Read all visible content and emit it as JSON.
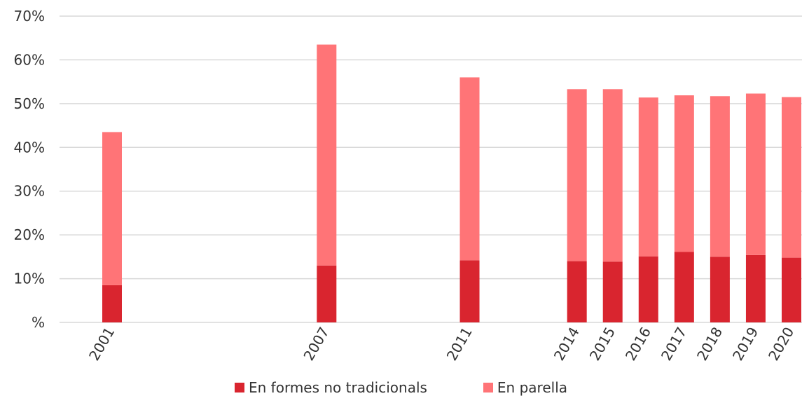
{
  "chart_data": {
    "type": "bar",
    "stacked": true,
    "categories": [
      "2001",
      "2007",
      "2011",
      "2014",
      "2015",
      "2016",
      "2017",
      "2018",
      "2019",
      "2020"
    ],
    "series": [
      {
        "name": "En formes no tradicionals",
        "color": "#d9252f",
        "values": [
          8.5,
          13.0,
          14.2,
          14.0,
          13.9,
          15.1,
          16.1,
          15.0,
          15.4,
          14.8
        ]
      },
      {
        "name": "En parella",
        "color": "#ff7477",
        "values": [
          35.0,
          50.5,
          41.8,
          39.3,
          39.4,
          36.3,
          35.8,
          36.7,
          36.9,
          36.7
        ]
      }
    ],
    "y_ticks": [
      "%",
      "10%",
      "20%",
      "30%",
      "40%",
      "50%",
      "60%",
      "70%"
    ],
    "ylim": [
      0,
      70
    ],
    "grid": true,
    "legend_position": "bottom"
  }
}
